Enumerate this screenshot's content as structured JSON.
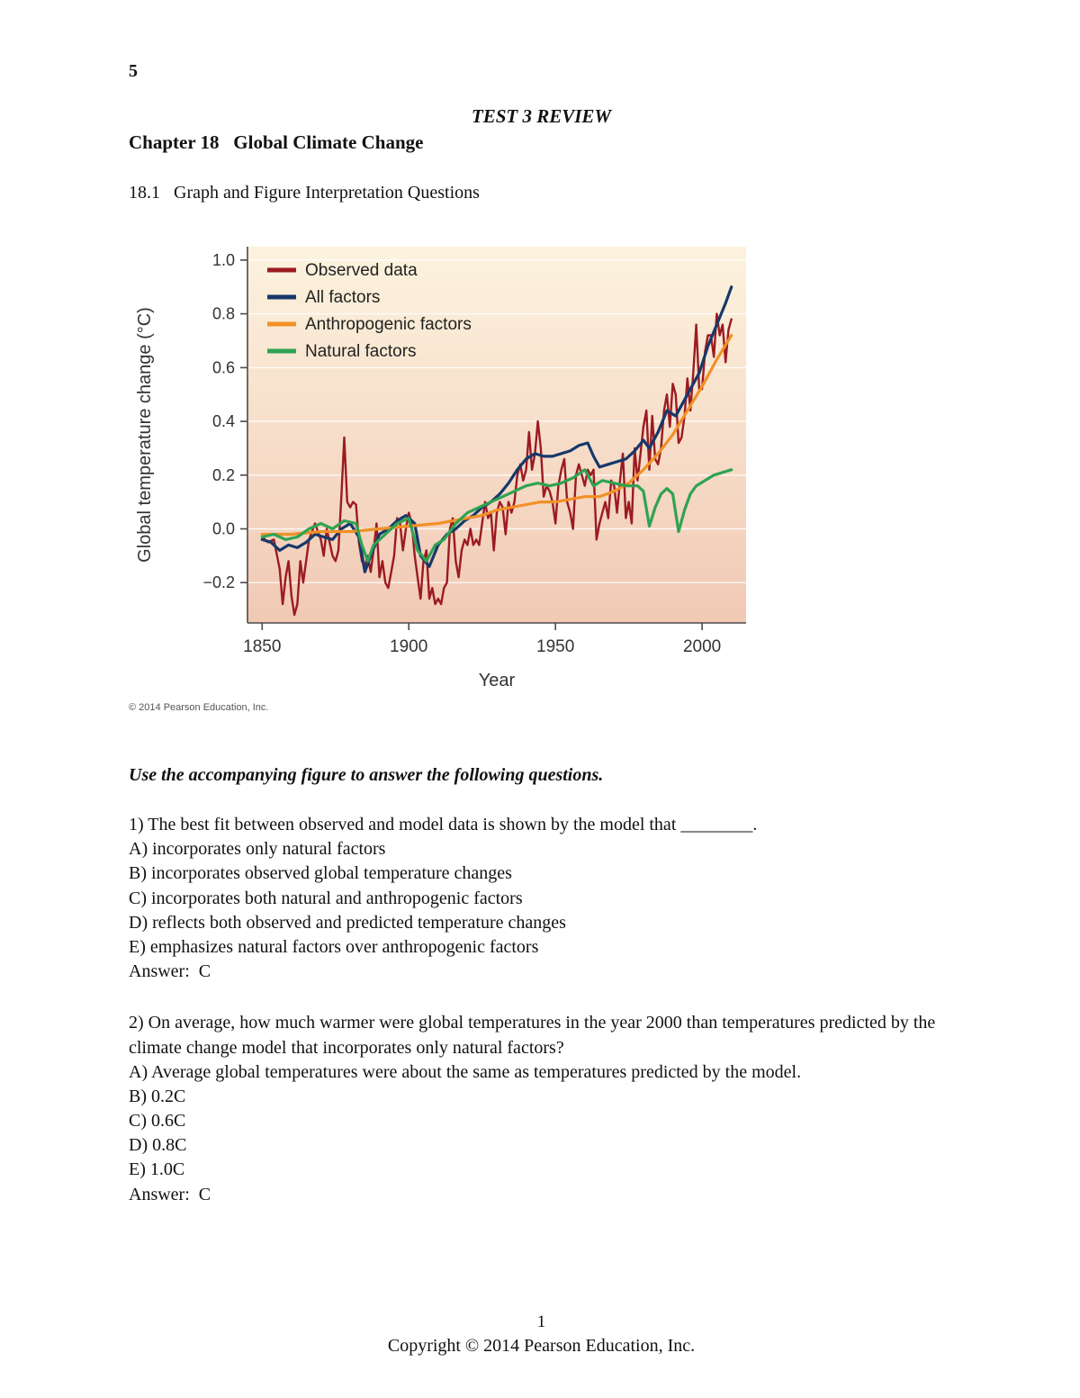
{
  "page": {
    "page_number_top": "5",
    "title": "TEST 3 REVIEW",
    "chapter_heading": "Chapter 18   Global Climate Change",
    "section_heading": "18.1   Graph and Figure Interpretation Questions",
    "figure_credit": "© 2014 Pearson Education, Inc.",
    "instruction": "Use the accompanying figure to answer the following questions.",
    "footer_page_number": "1",
    "footer_copyright": "Copyright © 2014 Pearson Education, Inc."
  },
  "questions": [
    {
      "stem": "1) The best fit between observed and model data is shown by the model that ________.",
      "choices": [
        "A) incorporates only natural factors",
        "B) incorporates observed global temperature changes",
        "C) incorporates both natural and anthropogenic factors",
        "D) reflects both observed and predicted temperature changes",
        "E) emphasizes natural factors over anthropogenic factors"
      ],
      "answer": "Answer:  C"
    },
    {
      "stem": "2) On average, how much warmer were global temperatures in the year 2000 than temperatures predicted by the climate change model that incorporates only natural factors?",
      "choices": [
        "A) Average global temperatures were about the same as temperatures predicted by the model.",
        "B) 0.2C",
        "C) 0.6C",
        "D) 0.8C",
        "E) 1.0C"
      ],
      "answer": "Answer:  C"
    }
  ],
  "chart_data": {
    "type": "line",
    "title": "",
    "xlabel": "Year",
    "ylabel": "Global temperature change (°C)",
    "xlim": [
      1845,
      2015
    ],
    "ylim": [
      -0.35,
      1.05
    ],
    "xticks": [
      1850,
      1900,
      1950,
      2000
    ],
    "yticks": [
      -0.2,
      0.0,
      0.2,
      0.4,
      0.6,
      0.8,
      1.0
    ],
    "grid": true,
    "legend_position": "top-left",
    "background_gradient": [
      "#fcf3de",
      "#f1c9b5"
    ],
    "series": [
      {
        "name": "Observed data",
        "color": "#9b1b21",
        "width": 2.4,
        "x": [
          1850,
          1852,
          1854,
          1856,
          1857,
          1858,
          1859,
          1860,
          1861,
          1862,
          1863,
          1864,
          1866,
          1868,
          1870,
          1871,
          1872,
          1874,
          1875,
          1876,
          1877,
          1878,
          1879,
          1880,
          1881,
          1882,
          1883,
          1884,
          1885,
          1886,
          1887,
          1888,
          1889,
          1890,
          1891,
          1892,
          1893,
          1894,
          1895,
          1896,
          1897,
          1898,
          1899,
          1900,
          1901,
          1902,
          1903,
          1904,
          1905,
          1906,
          1907,
          1908,
          1909,
          1910,
          1911,
          1912,
          1913,
          1914,
          1915,
          1916,
          1917,
          1918,
          1919,
          1920,
          1921,
          1922,
          1923,
          1924,
          1925,
          1926,
          1927,
          1928,
          1929,
          1930,
          1931,
          1932,
          1933,
          1934,
          1935,
          1936,
          1937,
          1938,
          1939,
          1940,
          1941,
          1942,
          1943,
          1944,
          1945,
          1946,
          1947,
          1948,
          1949,
          1950,
          1951,
          1952,
          1953,
          1954,
          1955,
          1956,
          1957,
          1958,
          1959,
          1960,
          1961,
          1962,
          1963,
          1964,
          1965,
          1966,
          1967,
          1968,
          1969,
          1970,
          1971,
          1972,
          1973,
          1974,
          1975,
          1976,
          1977,
          1978,
          1979,
          1980,
          1981,
          1982,
          1983,
          1984,
          1985,
          1986,
          1987,
          1988,
          1989,
          1990,
          1991,
          1992,
          1993,
          1994,
          1995,
          1996,
          1997,
          1998,
          1999,
          2000,
          2001,
          2002,
          2003,
          2004,
          2005,
          2006,
          2007,
          2008,
          2009,
          2010
        ],
        "y": [
          -0.03,
          -0.05,
          -0.04,
          -0.15,
          -0.28,
          -0.18,
          -0.12,
          -0.25,
          -0.32,
          -0.28,
          -0.12,
          -0.2,
          -0.04,
          0.02,
          -0.04,
          -0.1,
          0.0,
          -0.1,
          -0.12,
          -0.08,
          0.12,
          0.34,
          0.1,
          0.08,
          0.1,
          0.09,
          -0.05,
          -0.12,
          -0.14,
          -0.1,
          -0.16,
          -0.08,
          0.02,
          -0.18,
          -0.12,
          -0.2,
          -0.22,
          -0.16,
          -0.1,
          0.04,
          0.02,
          -0.08,
          0.0,
          0.06,
          0.02,
          -0.1,
          -0.18,
          -0.26,
          -0.12,
          -0.08,
          -0.26,
          -0.22,
          -0.28,
          -0.26,
          -0.28,
          -0.22,
          -0.2,
          0.0,
          0.04,
          -0.12,
          -0.18,
          -0.08,
          -0.04,
          -0.06,
          0.0,
          -0.06,
          -0.04,
          -0.06,
          0.02,
          0.1,
          0.04,
          0.06,
          -0.08,
          0.06,
          0.1,
          0.08,
          -0.02,
          0.1,
          0.06,
          0.1,
          0.2,
          0.24,
          0.18,
          0.22,
          0.36,
          0.22,
          0.28,
          0.4,
          0.3,
          0.12,
          0.16,
          0.14,
          0.1,
          0.02,
          0.16,
          0.22,
          0.26,
          0.1,
          0.06,
          0.0,
          0.2,
          0.24,
          0.2,
          0.16,
          0.22,
          0.2,
          0.22,
          -0.04,
          0.02,
          0.06,
          0.1,
          0.04,
          0.18,
          0.16,
          0.06,
          0.18,
          0.28,
          0.04,
          0.1,
          0.02,
          0.3,
          0.18,
          0.28,
          0.38,
          0.44,
          0.22,
          0.42,
          0.26,
          0.24,
          0.3,
          0.44,
          0.5,
          0.38,
          0.54,
          0.5,
          0.32,
          0.34,
          0.42,
          0.56,
          0.44,
          0.58,
          0.76,
          0.52,
          0.52,
          0.66,
          0.72,
          0.72,
          0.64,
          0.8,
          0.72,
          0.76,
          0.62,
          0.74,
          0.78
        ]
      },
      {
        "name": "All factors",
        "color": "#16386b",
        "width": 3.2,
        "x": [
          1850,
          1853,
          1856,
          1859,
          1862,
          1865,
          1868,
          1871,
          1874,
          1877,
          1880,
          1883,
          1885,
          1887,
          1890,
          1893,
          1896,
          1899,
          1902,
          1904,
          1907,
          1910,
          1913,
          1916,
          1919,
          1922,
          1925,
          1928,
          1931,
          1934,
          1937,
          1940,
          1943,
          1946,
          1949,
          1952,
          1955,
          1958,
          1961,
          1963,
          1965,
          1968,
          1971,
          1974,
          1977,
          1980,
          1982,
          1985,
          1988,
          1991,
          1993,
          1996,
          1999,
          2002,
          2005,
          2008,
          2010
        ],
        "y": [
          -0.04,
          -0.05,
          -0.08,
          -0.06,
          -0.07,
          -0.05,
          -0.02,
          -0.03,
          -0.04,
          0.0,
          0.02,
          -0.03,
          -0.16,
          -0.1,
          -0.02,
          0.0,
          0.03,
          0.05,
          0.02,
          -0.1,
          -0.14,
          -0.06,
          -0.02,
          0.0,
          0.03,
          0.05,
          0.08,
          0.1,
          0.13,
          0.17,
          0.22,
          0.26,
          0.28,
          0.27,
          0.27,
          0.28,
          0.29,
          0.31,
          0.32,
          0.27,
          0.23,
          0.24,
          0.25,
          0.26,
          0.29,
          0.33,
          0.3,
          0.36,
          0.44,
          0.42,
          0.46,
          0.52,
          0.58,
          0.68,
          0.76,
          0.84,
          0.9
        ]
      },
      {
        "name": "Anthropogenic factors",
        "color": "#f29027",
        "width": 3.2,
        "x": [
          1850,
          1860,
          1870,
          1880,
          1890,
          1900,
          1910,
          1920,
          1925,
          1930,
          1935,
          1940,
          1945,
          1950,
          1955,
          1960,
          1965,
          1970,
          1975,
          1980,
          1985,
          1990,
          1995,
          2000,
          2005,
          2010
        ],
        "y": [
          -0.02,
          -0.02,
          -0.01,
          -0.01,
          0.0,
          0.01,
          0.02,
          0.04,
          0.05,
          0.07,
          0.08,
          0.09,
          0.1,
          0.1,
          0.11,
          0.12,
          0.12,
          0.14,
          0.17,
          0.22,
          0.28,
          0.35,
          0.44,
          0.53,
          0.63,
          0.72
        ]
      },
      {
        "name": "Natural factors",
        "color": "#2fa352",
        "width": 3.2,
        "x": [
          1850,
          1854,
          1858,
          1862,
          1866,
          1870,
          1874,
          1878,
          1882,
          1884,
          1886,
          1888,
          1892,
          1896,
          1900,
          1903,
          1906,
          1909,
          1912,
          1916,
          1920,
          1924,
          1928,
          1932,
          1936,
          1940,
          1944,
          1948,
          1952,
          1956,
          1960,
          1963,
          1966,
          1970,
          1974,
          1978,
          1980,
          1982,
          1984,
          1986,
          1988,
          1990,
          1992,
          1994,
          1996,
          1998,
          2001,
          2004,
          2007,
          2010
        ],
        "y": [
          -0.03,
          -0.02,
          -0.04,
          -0.03,
          0.0,
          0.02,
          0.0,
          0.03,
          0.02,
          -0.06,
          -0.12,
          -0.06,
          -0.02,
          0.02,
          0.04,
          -0.08,
          -0.12,
          -0.06,
          -0.04,
          0.02,
          0.06,
          0.08,
          0.1,
          0.12,
          0.14,
          0.16,
          0.17,
          0.16,
          0.17,
          0.19,
          0.22,
          0.16,
          0.18,
          0.17,
          0.16,
          0.16,
          0.14,
          0.01,
          0.08,
          0.13,
          0.15,
          0.13,
          -0.01,
          0.07,
          0.13,
          0.16,
          0.18,
          0.2,
          0.21,
          0.22
        ]
      }
    ]
  }
}
